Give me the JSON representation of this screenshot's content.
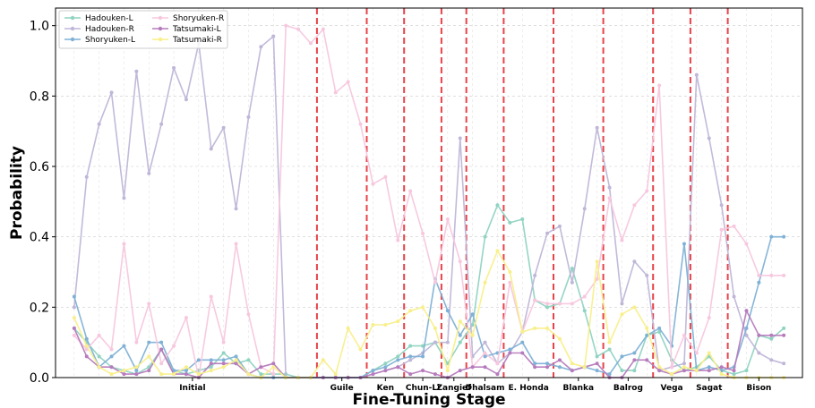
{
  "chart_data": {
    "type": "line",
    "xlabel": "Fine-Tuning Stage",
    "ylabel": "Probability",
    "ylim": [
      0,
      1.05
    ],
    "yticks": [
      "0.0",
      "0.2",
      "0.4",
      "0.6",
      "0.8",
      "1.0"
    ],
    "grid": true,
    "legend_position": "top-left",
    "stages": [
      {
        "label": "Initial",
        "start": 0,
        "end": 20
      },
      {
        "label": "Guile",
        "start": 20,
        "end": 24
      },
      {
        "label": "Ken",
        "start": 24,
        "end": 27
      },
      {
        "label": "Chun-Li",
        "start": 27,
        "end": 30
      },
      {
        "label": "Zangief",
        "start": 30,
        "end": 32
      },
      {
        "label": "Dhalsam",
        "start": 32,
        "end": 35
      },
      {
        "label": "E. Honda",
        "start": 35,
        "end": 39
      },
      {
        "label": "Blanka",
        "start": 39,
        "end": 43
      },
      {
        "label": "Balrog",
        "start": 43,
        "end": 47
      },
      {
        "label": "Vega",
        "start": 47,
        "end": 50
      },
      {
        "label": "Sagat",
        "start": 50,
        "end": 53
      },
      {
        "label": "Bison",
        "start": 53,
        "end": 58
      }
    ],
    "x": [
      0,
      1,
      2,
      3,
      4,
      5,
      6,
      7,
      8,
      9,
      10,
      11,
      12,
      13,
      14,
      15,
      16,
      17,
      18,
      19,
      20,
      21,
      22,
      23,
      24,
      25,
      26,
      27,
      28,
      29,
      30,
      31,
      32,
      33,
      34,
      35,
      36,
      37,
      38,
      39,
      40,
      41,
      42,
      43,
      44,
      45,
      46,
      47,
      48,
      49,
      50,
      51,
      52,
      53,
      54,
      55,
      56,
      57
    ],
    "series": [
      {
        "name": "Hadouken-L",
        "color": "#8fd3c1",
        "values": [
          0.14,
          0.1,
          0.06,
          0.03,
          0.02,
          0.01,
          0.03,
          0.08,
          0.02,
          0.01,
          0.02,
          0.03,
          0.07,
          0.04,
          0.05,
          0.01,
          0.01,
          0.01,
          0.0,
          0.0,
          0.0,
          0.0,
          0.0,
          0.0,
          0.02,
          0.04,
          0.06,
          0.09,
          0.09,
          0.1,
          0.04,
          0.1,
          0.15,
          0.4,
          0.49,
          0.44,
          0.45,
          0.22,
          0.2,
          0.21,
          0.31,
          0.19,
          0.06,
          0.08,
          0.02,
          0.02,
          0.12,
          0.13,
          0.05,
          0.02,
          0.03,
          0.06,
          0.02,
          0.01,
          0.02,
          0.12,
          0.11,
          0.14
        ]
      },
      {
        "name": "Hadouken-R",
        "color": "#bfb6d8",
        "values": [
          0.2,
          0.57,
          0.72,
          0.81,
          0.51,
          0.87,
          0.58,
          0.72,
          0.88,
          0.79,
          0.95,
          0.65,
          0.71,
          0.48,
          0.74,
          0.94,
          0.97,
          0.0,
          0.0,
          0.0,
          0.0,
          0.0,
          0.0,
          0.0,
          0.01,
          0.02,
          0.03,
          0.05,
          0.07,
          0.1,
          0.1,
          0.68,
          0.06,
          0.1,
          0.04,
          0.07,
          0.13,
          0.29,
          0.41,
          0.43,
          0.27,
          0.48,
          0.71,
          0.54,
          0.21,
          0.33,
          0.29,
          0.02,
          0.03,
          0.04,
          0.86,
          0.68,
          0.49,
          0.23,
          0.12,
          0.07,
          0.05,
          0.04
        ]
      },
      {
        "name": "Shoryuken-L",
        "color": "#7fb1d6",
        "values": [
          0.23,
          0.11,
          0.03,
          0.06,
          0.09,
          0.02,
          0.1,
          0.1,
          0.02,
          0.02,
          0.05,
          0.05,
          0.05,
          0.06,
          0.01,
          0.0,
          0.0,
          0.0,
          0.0,
          0.0,
          0.0,
          0.0,
          0.0,
          0.0,
          0.02,
          0.03,
          0.05,
          0.06,
          0.06,
          0.28,
          0.19,
          0.12,
          0.18,
          0.06,
          0.07,
          0.08,
          0.1,
          0.04,
          0.04,
          0.03,
          0.02,
          0.03,
          0.02,
          0.01,
          0.06,
          0.07,
          0.12,
          0.14,
          0.09,
          0.38,
          0.02,
          0.03,
          0.02,
          0.03,
          0.14,
          0.27,
          0.4,
          0.4
        ]
      },
      {
        "name": "Shoryuken-R",
        "color": "#f7c7de",
        "values": [
          0.12,
          0.08,
          0.12,
          0.08,
          0.38,
          0.1,
          0.21,
          0.04,
          0.09,
          0.17,
          0.0,
          0.23,
          0.1,
          0.38,
          0.18,
          0.03,
          0.01,
          1.0,
          0.99,
          0.95,
          0.99,
          0.81,
          0.84,
          0.72,
          0.55,
          0.57,
          0.39,
          0.53,
          0.41,
          0.27,
          0.45,
          0.33,
          0.03,
          0.07,
          0.04,
          0.27,
          0.13,
          0.22,
          0.21,
          0.21,
          0.21,
          0.23,
          0.28,
          0.51,
          0.39,
          0.49,
          0.53,
          0.83,
          0.03,
          0.12,
          0.07,
          0.17,
          0.42,
          0.43,
          0.38,
          0.29,
          0.29,
          0.29
        ]
      },
      {
        "name": "Tatsumaki-L",
        "color": "#b67bbd",
        "values": [
          0.14,
          0.06,
          0.03,
          0.03,
          0.01,
          0.01,
          0.02,
          0.08,
          0.01,
          0.01,
          0.0,
          0.04,
          0.04,
          0.04,
          0.01,
          0.03,
          0.04,
          0.0,
          0.0,
          0.0,
          0.0,
          0.0,
          0.0,
          0.0,
          0.01,
          0.02,
          0.03,
          0.01,
          0.02,
          0.01,
          0.0,
          0.02,
          0.03,
          0.03,
          0.01,
          0.07,
          0.07,
          0.03,
          0.03,
          0.05,
          0.02,
          0.03,
          0.04,
          0.0,
          0.0,
          0.05,
          0.05,
          0.02,
          0.01,
          0.02,
          0.02,
          0.02,
          0.03,
          0.02,
          0.19,
          0.12,
          0.12,
          0.12
        ]
      },
      {
        "name": "Tatsumaki-R",
        "color": "#f8ef8a",
        "values": [
          0.17,
          0.09,
          0.03,
          0.01,
          0.02,
          0.03,
          0.06,
          0.01,
          0.01,
          0.03,
          0.01,
          0.02,
          0.03,
          0.05,
          0.01,
          0.0,
          0.03,
          0.0,
          0.0,
          0.0,
          0.05,
          0.01,
          0.14,
          0.08,
          0.15,
          0.15,
          0.16,
          0.19,
          0.2,
          0.14,
          0.02,
          0.16,
          0.12,
          0.27,
          0.36,
          0.3,
          0.13,
          0.14,
          0.14,
          0.11,
          0.04,
          0.03,
          0.33,
          0.1,
          0.18,
          0.2,
          0.14,
          0.03,
          0.01,
          0.03,
          0.02,
          0.07,
          0.01,
          0.0,
          0.0,
          0.0,
          0.0,
          0.0
        ]
      }
    ]
  }
}
